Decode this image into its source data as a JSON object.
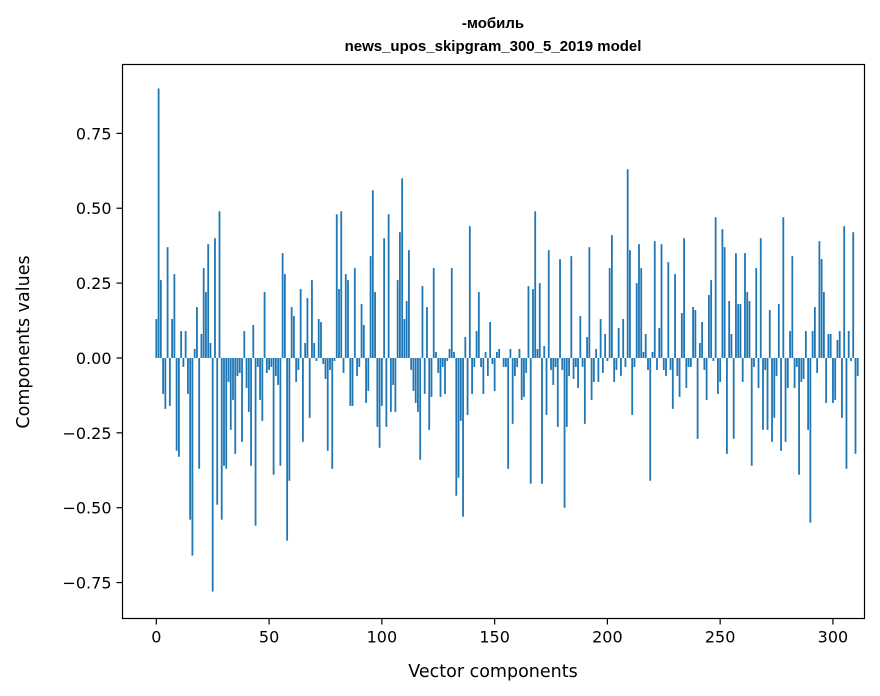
{
  "chart_data": {
    "type": "bar",
    "title_line1": "-мобиль",
    "title_line2": "news_upos_skipgram_300_5_2019 model",
    "xlabel": "Vector components",
    "ylabel": "Components values",
    "xlim": [
      -15,
      314
    ],
    "ylim": [
      -0.87,
      0.98
    ],
    "x_ticks": [
      0,
      50,
      100,
      150,
      200,
      250,
      300
    ],
    "x_tick_labels": [
      "0",
      "50",
      "100",
      "150",
      "200",
      "250",
      "300"
    ],
    "y_ticks": [
      -0.75,
      -0.5,
      -0.25,
      0.0,
      0.25,
      0.5,
      0.75
    ],
    "y_tick_labels": [
      "−0.75",
      "−0.50",
      "−0.25",
      "0.00",
      "0.25",
      "0.50",
      "0.75"
    ],
    "bar_color": "#1f77b4",
    "values": [
      0.13,
      0.9,
      0.26,
      -0.12,
      -0.17,
      0.37,
      -0.16,
      0.13,
      0.28,
      -0.31,
      -0.33,
      0.09,
      -0.03,
      0.09,
      -0.12,
      -0.54,
      -0.66,
      0.03,
      0.17,
      -0.37,
      0.08,
      0.3,
      0.22,
      0.38,
      0.05,
      -0.78,
      0.4,
      -0.49,
      0.49,
      -0.54,
      -0.36,
      -0.37,
      -0.08,
      -0.24,
      -0.14,
      -0.32,
      -0.06,
      -0.05,
      -0.28,
      0.09,
      -0.1,
      -0.18,
      -0.36,
      0.11,
      -0.56,
      -0.03,
      -0.14,
      -0.21,
      0.22,
      -0.05,
      -0.04,
      -0.03,
      -0.39,
      -0.06,
      -0.09,
      -0.36,
      0.35,
      0.28,
      -0.61,
      -0.41,
      0.17,
      0.14,
      -0.08,
      -0.04,
      0.23,
      -0.28,
      0.05,
      0.2,
      -0.2,
      0.26,
      0.05,
      -0.01,
      0.13,
      0.12,
      -0.02,
      -0.07,
      -0.31,
      -0.04,
      -0.37,
      -0.01,
      0.48,
      0.23,
      0.49,
      -0.05,
      0.28,
      0.26,
      -0.16,
      -0.16,
      0.3,
      -0.06,
      -0.03,
      0.18,
      0.11,
      -0.15,
      -0.11,
      0.34,
      0.56,
      0.22,
      -0.23,
      -0.3,
      -0.16,
      0.4,
      -0.23,
      0.48,
      -0.18,
      -0.09,
      -0.18,
      0.26,
      0.42,
      0.6,
      0.13,
      0.19,
      0.36,
      -0.04,
      -0.11,
      -0.15,
      -0.18,
      -0.34,
      0.24,
      -0.12,
      0.17,
      -0.24,
      -0.13,
      0.3,
      0.02,
      -0.05,
      -0.13,
      -0.03,
      -0.12,
      -0.01,
      0.03,
      0.3,
      0.02,
      -0.46,
      -0.4,
      -0.21,
      -0.53,
      0.07,
      -0.19,
      0.44,
      -0.12,
      -0.03,
      0.09,
      0.22,
      -0.03,
      -0.12,
      0.02,
      -0.06,
      0.12,
      -0.02,
      -0.11,
      0.02,
      0.03,
      0.0,
      -0.03,
      -0.03,
      -0.37,
      0.03,
      -0.22,
      -0.06,
      -0.03,
      0.03,
      -0.14,
      -0.13,
      -0.05,
      0.24,
      -0.42,
      0.23,
      0.49,
      0.03,
      0.25,
      -0.42,
      0.04,
      -0.19,
      0.36,
      -0.04,
      -0.09,
      -0.03,
      -0.23,
      0.33,
      -0.04,
      -0.5,
      -0.23,
      -0.06,
      0.34,
      -0.07,
      -0.03,
      -0.1,
      0.14,
      -0.03,
      -0.22,
      0.07,
      0.37,
      -0.14,
      -0.08,
      0.03,
      -0.08,
      0.13,
      -0.05,
      0.08,
      -0.01,
      0.3,
      0.41,
      -0.08,
      -0.04,
      0.1,
      -0.06,
      0.13,
      -0.03,
      0.63,
      0.36,
      -0.19,
      -0.03,
      0.25,
      0.38,
      0.3,
      0.02,
      0.08,
      -0.04,
      -0.41,
      0.02,
      0.39,
      -0.04,
      0.1,
      0.38,
      -0.04,
      -0.06,
      0.32,
      -0.04,
      -0.17,
      0.28,
      -0.06,
      -0.13,
      0.15,
      0.4,
      -0.1,
      -0.03,
      -0.03,
      0.17,
      0.16,
      -0.27,
      0.05,
      0.12,
      -0.04,
      -0.14,
      0.21,
      0.26,
      -0.01,
      0.47,
      -0.12,
      -0.08,
      0.43,
      0.37,
      -0.32,
      0.19,
      0.08,
      -0.27,
      0.35,
      0.18,
      0.18,
      -0.08,
      0.35,
      0.22,
      0.19,
      -0.36,
      -0.03,
      0.3,
      -0.1,
      0.4,
      -0.24,
      -0.04,
      -0.24,
      0.16,
      -0.28,
      -0.2,
      -0.06,
      0.18,
      -0.31,
      0.47,
      -0.28,
      -0.1,
      0.09,
      0.34,
      -0.1,
      -0.03,
      -0.39,
      -0.08,
      -0.07,
      0.09,
      -0.24,
      -0.55,
      0.09,
      0.17,
      -0.05,
      0.39,
      0.33,
      0.22,
      -0.15,
      0.08,
      0.08,
      -0.15,
      -0.14,
      0.06,
      0.09,
      -0.2,
      0.44,
      -0.37,
      0.09,
      -0.01,
      0.42,
      -0.32,
      -0.06
    ]
  }
}
